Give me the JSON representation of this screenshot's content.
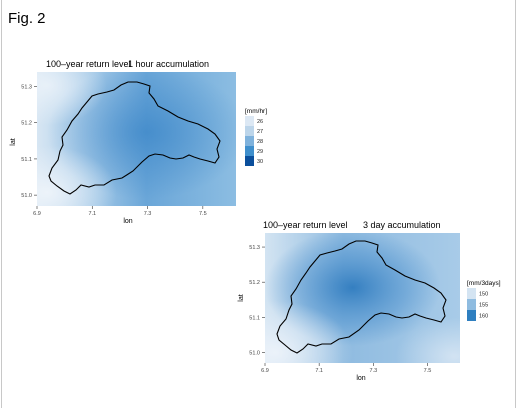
{
  "figure_label": "Fig. 2",
  "colors": {
    "panel_bg": "#ebebeb",
    "outline": "#000000",
    "frame_rule": "#c8c8c8"
  },
  "chart_data": [
    {
      "type": "heatmap",
      "title_left": "100–year return level",
      "title_right": "1 hour accumulation",
      "xlabel": "lon",
      "ylabel": "lat",
      "x_ticks": [
        "6.9",
        "7.1",
        "7.3",
        "7.5"
      ],
      "y_ticks": [
        "51.0",
        "51.1",
        "51.2",
        "51.3"
      ],
      "xlim": [
        6.9,
        7.62
      ],
      "ylim": [
        50.97,
        51.34
      ],
      "legend_title": "[mm/hr]",
      "legend": [
        {
          "label": "26",
          "color": "#dce8f4"
        },
        {
          "label": "27",
          "color": "#bcd5ea"
        },
        {
          "label": "28",
          "color": "#7fb2dc"
        },
        {
          "label": "29",
          "color": "#3f8fcc"
        },
        {
          "label": "30",
          "color": "#0b4f9c"
        }
      ]
    },
    {
      "type": "heatmap",
      "title_left": "100–year return level",
      "title_right": "3 day accumulation",
      "xlabel": "lon",
      "ylabel": "lat",
      "x_ticks": [
        "6.9",
        "7.1",
        "7.3",
        "7.5"
      ],
      "y_ticks": [
        "51.0",
        "51.1",
        "51.2",
        "51.3"
      ],
      "xlim": [
        6.9,
        7.62
      ],
      "ylim": [
        50.97,
        51.34
      ],
      "legend_title": "[mm/3days]",
      "legend": [
        {
          "label": "150",
          "color": "#d4e4f2"
        },
        {
          "label": "155",
          "color": "#8fbce0"
        },
        {
          "label": "160",
          "color": "#2f7fc0"
        }
      ]
    }
  ]
}
